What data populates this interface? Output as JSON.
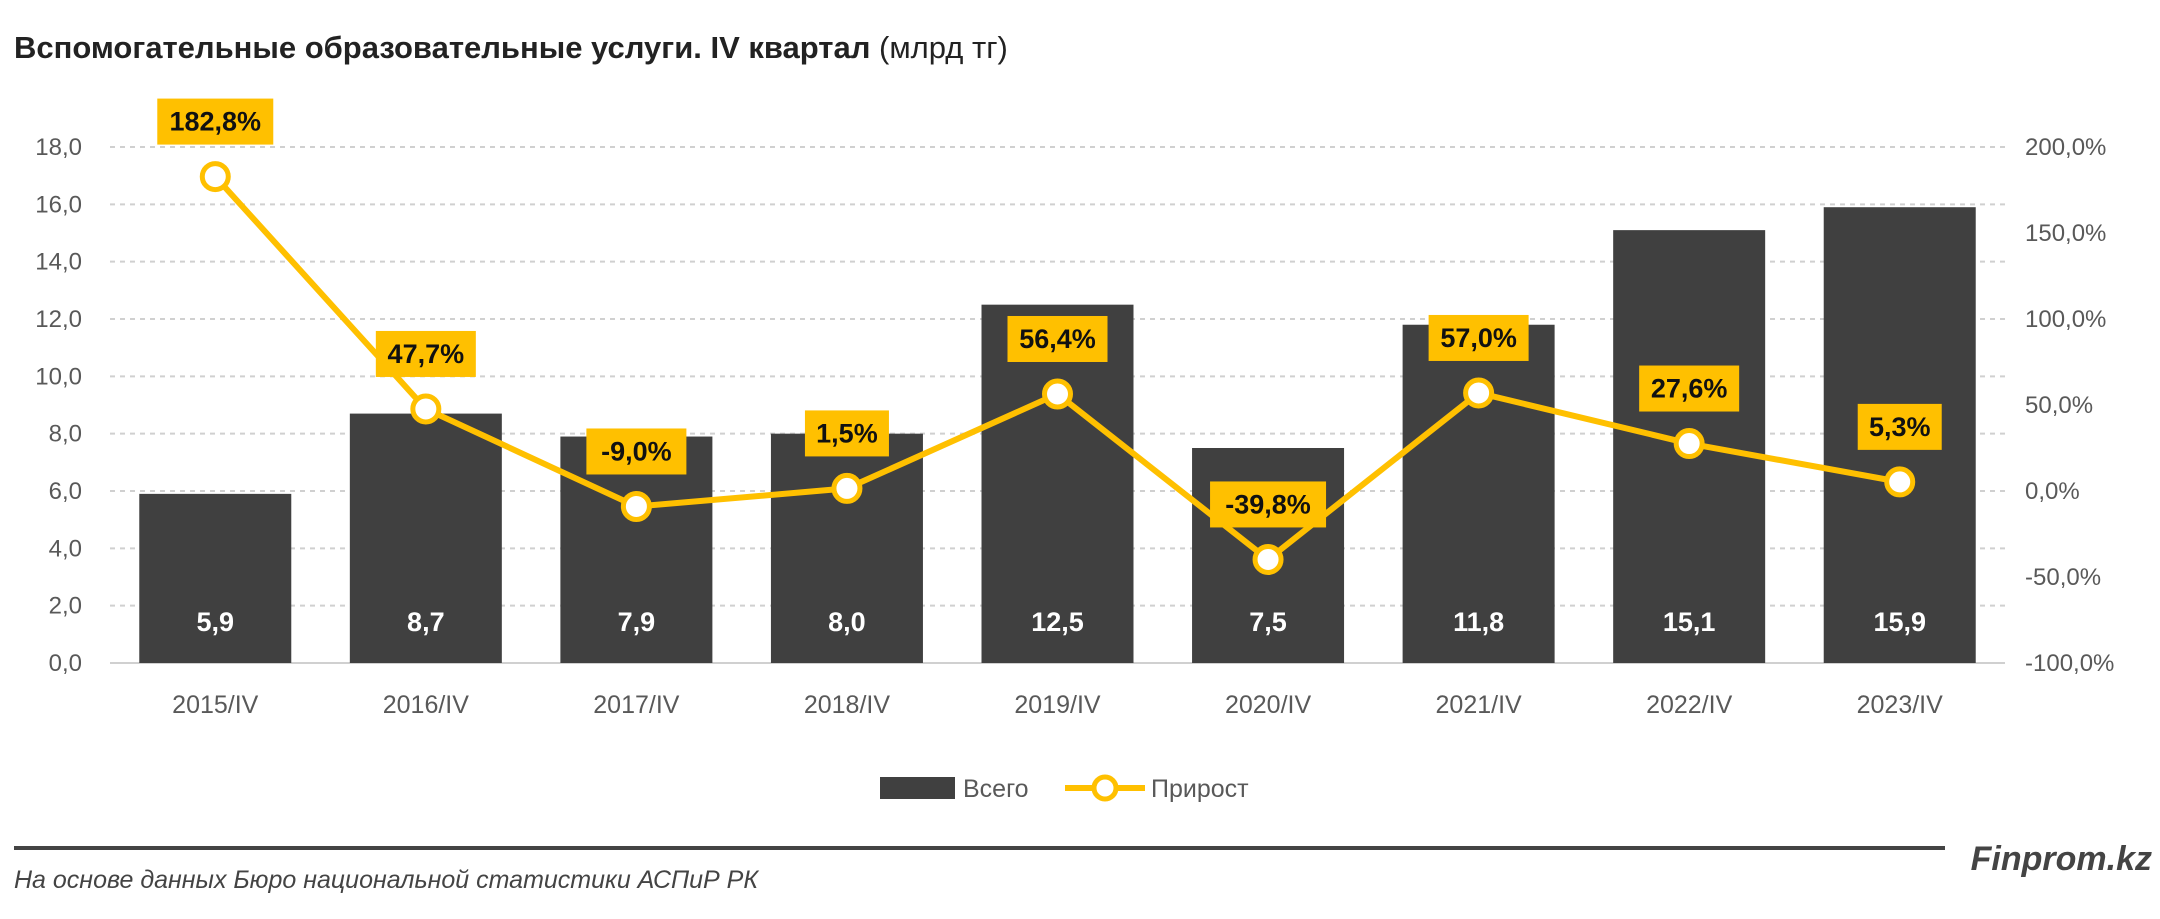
{
  "title": {
    "bold": "Вспомогательные образовательные услуги. IV квартал",
    "unit": "(млрд тг)"
  },
  "chart_data": {
    "type": "bar+line",
    "categories": [
      "2015/IV",
      "2016/IV",
      "2017/IV",
      "2018/IV",
      "2019/IV",
      "2020/IV",
      "2021/IV",
      "2022/IV",
      "2023/IV"
    ],
    "series": [
      {
        "name": "Всего",
        "type": "bar",
        "axis": "left",
        "values": [
          5.9,
          8.7,
          7.9,
          8.0,
          12.5,
          7.5,
          11.8,
          15.1,
          15.9
        ],
        "labels": [
          "5,9",
          "8,7",
          "7,9",
          "8,0",
          "12,5",
          "7,5",
          "11,8",
          "15,1",
          "15,9"
        ],
        "color": "#404040"
      },
      {
        "name": "Прирост",
        "type": "line",
        "axis": "right",
        "values": [
          182.8,
          47.7,
          -9.0,
          1.5,
          56.4,
          -39.8,
          57.0,
          27.6,
          5.3
        ],
        "labels": [
          "182,8%",
          "47,7%",
          "-9,0%",
          "1,5%",
          "56,4%",
          "-39,8%",
          "57,0%",
          "27,6%",
          "5,3%"
        ],
        "color": "#FFC000"
      }
    ],
    "left_axis": {
      "range": [
        0,
        18
      ],
      "ticks": [
        "0,0",
        "2,0",
        "4,0",
        "6,0",
        "8,0",
        "10,0",
        "12,0",
        "14,0",
        "16,0",
        "18,0"
      ]
    },
    "right_axis": {
      "range": [
        -100,
        200
      ],
      "ticks": [
        "-100,0%",
        "-50,0%",
        "0,0%",
        "50,0%",
        "100,0%",
        "150,0%",
        "200,0%"
      ]
    },
    "grid": true,
    "legend": "bottom"
  },
  "footer": {
    "brand": "Finprom.kz",
    "source": "На основе данных Бюро национальной статистики АСПиР РК"
  }
}
